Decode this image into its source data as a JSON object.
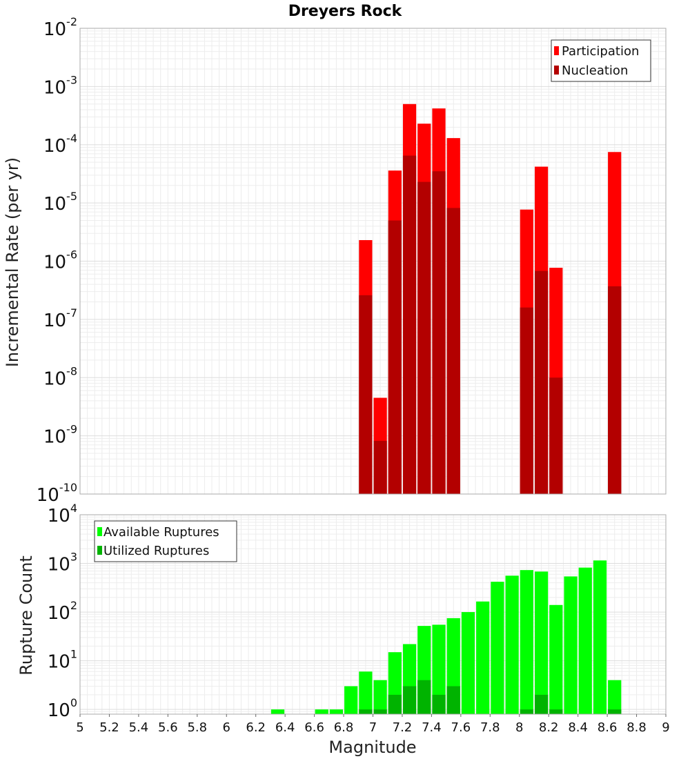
{
  "title": "Dreyers Rock",
  "chart_data": [
    {
      "type": "bar",
      "name": "rate-chart",
      "ylabel": "Incremental Rate (per yr)",
      "yscale": "log",
      "ylim": [
        1e-10,
        0.01
      ],
      "xlim": [
        5,
        9
      ],
      "grid": true,
      "legend_position": "top-right",
      "bin_width": 0.1,
      "series": [
        {
          "name": "Participation",
          "color": "#ff0000",
          "points": [
            {
              "x": 6.95,
              "y": 2.3e-06
            },
            {
              "x": 7.05,
              "y": 4.5e-09
            },
            {
              "x": 7.15,
              "y": 3.6e-05
            },
            {
              "x": 7.25,
              "y": 0.0005
            },
            {
              "x": 7.35,
              "y": 0.00023
            },
            {
              "x": 7.45,
              "y": 0.00042
            },
            {
              "x": 7.55,
              "y": 0.00013
            },
            {
              "x": 8.05,
              "y": 7.7e-06
            },
            {
              "x": 8.15,
              "y": 4.2e-05
            },
            {
              "x": 8.25,
              "y": 7.7e-07
            },
            {
              "x": 8.65,
              "y": 7.5e-05
            }
          ]
        },
        {
          "name": "Nucleation",
          "color": "#b30000",
          "points": [
            {
              "x": 6.95,
              "y": 2.6e-07
            },
            {
              "x": 7.05,
              "y": 8.2e-10
            },
            {
              "x": 7.15,
              "y": 5e-06
            },
            {
              "x": 7.25,
              "y": 6.5e-05
            },
            {
              "x": 7.35,
              "y": 2.3e-05
            },
            {
              "x": 7.45,
              "y": 3.5e-05
            },
            {
              "x": 7.55,
              "y": 8.2e-06
            },
            {
              "x": 8.05,
              "y": 1.6e-07
            },
            {
              "x": 8.15,
              "y": 6.8e-07
            },
            {
              "x": 8.25,
              "y": 1e-08
            },
            {
              "x": 8.65,
              "y": 3.7e-07
            }
          ]
        }
      ]
    },
    {
      "type": "bar",
      "name": "count-chart",
      "xlabel": "Magnitude",
      "ylabel": "Rupture Count",
      "yscale": "log",
      "ylim": [
        0.8,
        10000
      ],
      "xlim": [
        5,
        9
      ],
      "grid": true,
      "legend_position": "top-left",
      "bin_width": 0.1,
      "xticks": [
        "5",
        "5.2",
        "5.4",
        "5.6",
        "5.8",
        "6",
        "6.2",
        "6.4",
        "6.6",
        "6.8",
        "7",
        "7.2",
        "7.4",
        "7.6",
        "7.8",
        "8",
        "8.2",
        "8.4",
        "8.6",
        "8.8",
        "9"
      ],
      "series": [
        {
          "name": "Available Ruptures",
          "color": "#00ff00",
          "points": [
            {
              "x": 6.35,
              "y": 1
            },
            {
              "x": 6.65,
              "y": 1
            },
            {
              "x": 6.75,
              "y": 1
            },
            {
              "x": 6.85,
              "y": 3
            },
            {
              "x": 6.95,
              "y": 6
            },
            {
              "x": 7.05,
              "y": 4
            },
            {
              "x": 7.15,
              "y": 15
            },
            {
              "x": 7.25,
              "y": 22
            },
            {
              "x": 7.35,
              "y": 52
            },
            {
              "x": 7.45,
              "y": 55
            },
            {
              "x": 7.55,
              "y": 75
            },
            {
              "x": 7.65,
              "y": 100
            },
            {
              "x": 7.75,
              "y": 165
            },
            {
              "x": 7.85,
              "y": 420
            },
            {
              "x": 7.95,
              "y": 560
            },
            {
              "x": 8.05,
              "y": 730
            },
            {
              "x": 8.15,
              "y": 680
            },
            {
              "x": 8.25,
              "y": 140
            },
            {
              "x": 8.35,
              "y": 540
            },
            {
              "x": 8.45,
              "y": 820
            },
            {
              "x": 8.55,
              "y": 1150
            },
            {
              "x": 8.65,
              "y": 4
            }
          ]
        },
        {
          "name": "Utilized Ruptures",
          "color": "#00b300",
          "points": [
            {
              "x": 6.95,
              "y": 1
            },
            {
              "x": 7.05,
              "y": 1
            },
            {
              "x": 7.15,
              "y": 2
            },
            {
              "x": 7.25,
              "y": 3
            },
            {
              "x": 7.35,
              "y": 4
            },
            {
              "x": 7.45,
              "y": 2
            },
            {
              "x": 7.55,
              "y": 3
            },
            {
              "x": 8.05,
              "y": 1
            },
            {
              "x": 8.15,
              "y": 2
            },
            {
              "x": 8.25,
              "y": 1
            },
            {
              "x": 8.65,
              "y": 1
            }
          ]
        }
      ]
    }
  ]
}
